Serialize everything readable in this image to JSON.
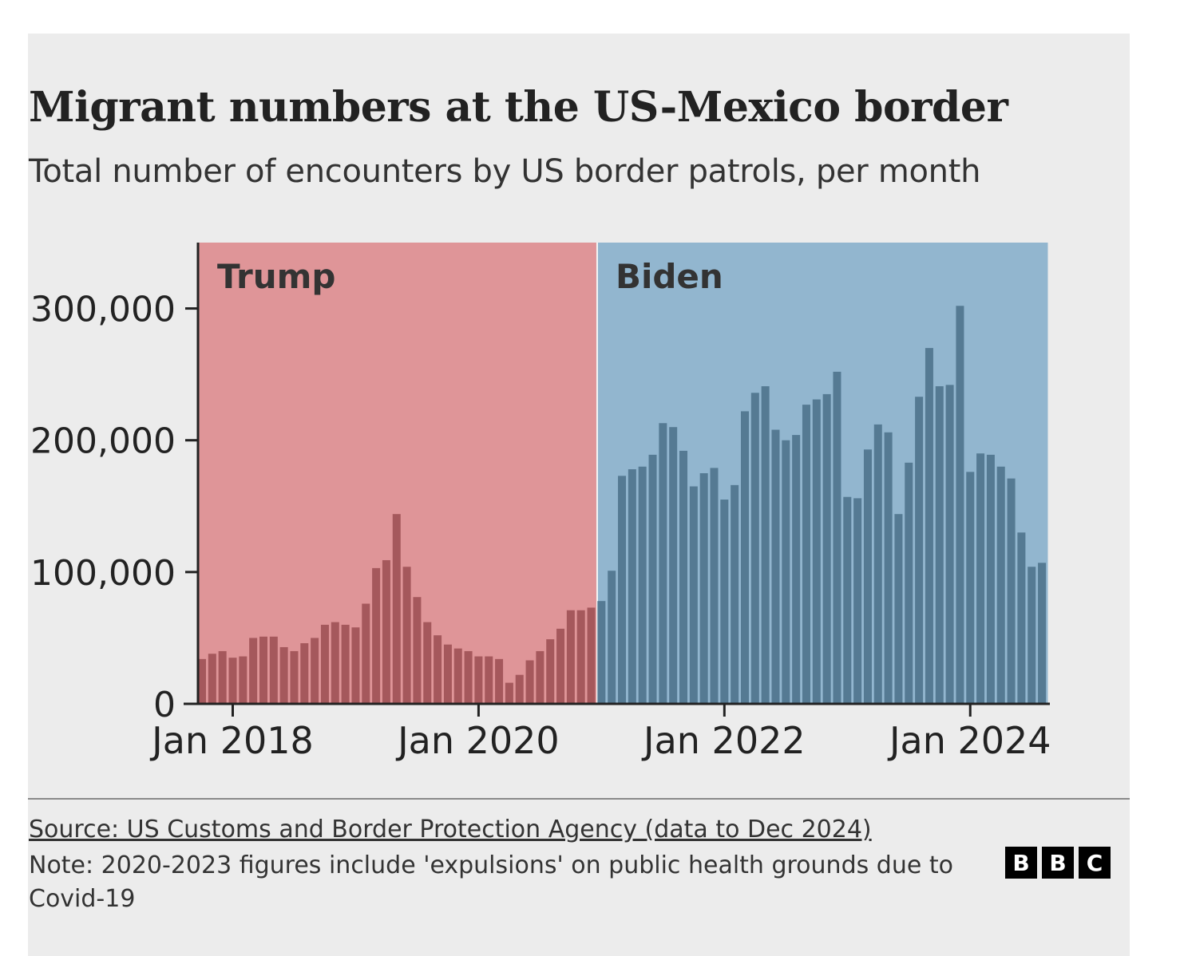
{
  "title": "Migrant numbers at the US-Mexico border",
  "subtitle": "Total number of encounters by US border patrols, per month",
  "source": "Source: US Customs and Border Protection Agency (data to Dec 2024)",
  "note": "Note: 2020-2023 figures include 'expulsions' on public health grounds due to Covid-19",
  "logo": [
    "B",
    "B",
    "C"
  ],
  "colors": {
    "trump_bg": "#df9598",
    "trump_bar": "#a5585c",
    "biden_bg": "#92b6cf",
    "biden_bar": "#557a93",
    "background": "#ececec"
  },
  "chart_data": {
    "type": "bar",
    "title": "Migrant numbers at the US-Mexico border",
    "xlabel": "",
    "ylabel": "",
    "start_month": "2017-10",
    "ylim": [
      0,
      350000
    ],
    "yticks": [
      0,
      100000,
      200000,
      300000
    ],
    "ytick_labels": [
      "0",
      "100,000",
      "200,000",
      "300,000"
    ],
    "xticks": [
      "2018-01",
      "2020-01",
      "2022-01",
      "2024-01"
    ],
    "xtick_labels": [
      "Jan 2018",
      "Jan 2020",
      "Jan 2022",
      "Jan 2024"
    ],
    "grid": false,
    "regions": [
      {
        "label": "Trump",
        "from": "2017-10",
        "to": "2020-12"
      },
      {
        "label": "Biden",
        "from": "2021-01",
        "to": "2024-08"
      }
    ],
    "series": [
      {
        "region": "Trump",
        "start": "2017-10",
        "values": [
          34000,
          38000,
          40000,
          35000,
          36000,
          50000,
          51000,
          51000,
          43000,
          40000,
          46000,
          50000,
          60000,
          62000,
          60000,
          58000,
          76000,
          103000,
          109000,
          144000,
          104000,
          81000,
          62000,
          52000,
          45000,
          42000,
          40000,
          36000,
          36000,
          34000,
          16000,
          22000,
          33000,
          40000,
          49000,
          57000,
          71000,
          71000,
          73000
        ]
      },
      {
        "region": "Biden",
        "start": "2021-01",
        "values": [
          78000,
          101000,
          173000,
          178000,
          180000,
          189000,
          213000,
          210000,
          192000,
          165000,
          175000,
          179000,
          155000,
          166000,
          222000,
          236000,
          241000,
          208000,
          200000,
          204000,
          227000,
          231000,
          235000,
          252000,
          157000,
          156000,
          193000,
          212000,
          206000,
          144000,
          183000,
          233000,
          270000,
          241000,
          242000,
          302000,
          176000,
          190000,
          189000,
          180000,
          171000,
          130000,
          104000,
          107000
        ]
      }
    ]
  }
}
